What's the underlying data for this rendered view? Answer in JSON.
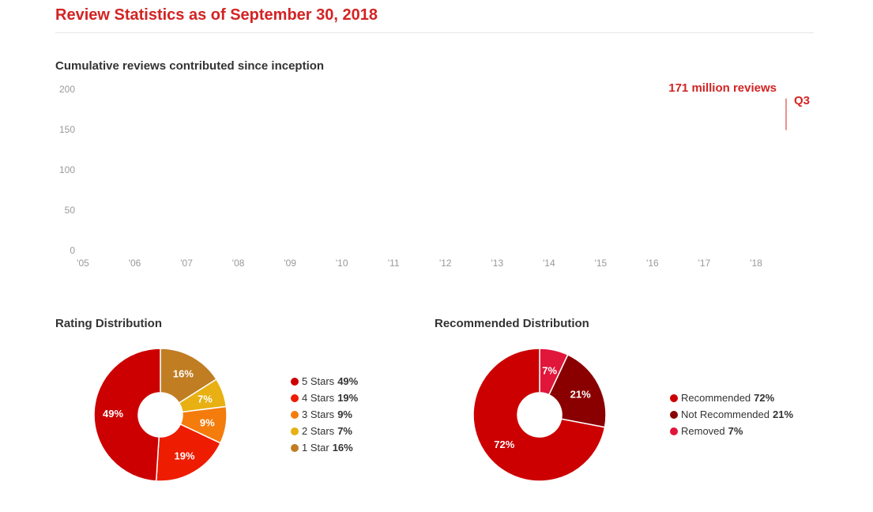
{
  "page": {
    "title": "Review Statistics as of September 30, 2018"
  },
  "chart_data": [
    {
      "type": "line",
      "title": "Cumulative reviews contributed since inception",
      "x": [
        "'05",
        "'06",
        "'07",
        "'08",
        "'09",
        "'10",
        "'11",
        "'12",
        "'13",
        "'14",
        "'15",
        "'16",
        "'17",
        "'18"
      ],
      "y_ticks": [
        "0",
        "50",
        "100",
        "150",
        "200"
      ],
      "ylim": [
        0,
        200
      ],
      "annotation": {
        "text": "171 million reviews",
        "period": "Q3",
        "value": 171
      },
      "grid": false
    },
    {
      "type": "pie",
      "title": "Rating Distribution",
      "donut": true,
      "slices": [
        {
          "label": "5 Stars",
          "value": 49,
          "display": "49%",
          "color": "#cc0000"
        },
        {
          "label": "4 Stars",
          "value": 19,
          "display": "19%",
          "color": "#ee1c00"
        },
        {
          "label": "3 Stars",
          "value": 9,
          "display": "9%",
          "color": "#f47c0c"
        },
        {
          "label": "2 Stars",
          "value": 7,
          "display": "7%",
          "color": "#e8b012"
        },
        {
          "label": "1 Star",
          "value": 16,
          "display": "16%",
          "color": "#c07d22"
        }
      ]
    },
    {
      "type": "pie",
      "title": "Recommended Distribution",
      "donut": true,
      "slices": [
        {
          "label": "Recommended",
          "value": 72,
          "display": "72%",
          "color": "#cc0000"
        },
        {
          "label": "Not Recommended",
          "value": 21,
          "display": "21%",
          "color": "#8a0000"
        },
        {
          "label": "Removed",
          "value": 7,
          "display": "7%",
          "color": "#e0163a"
        }
      ]
    }
  ]
}
